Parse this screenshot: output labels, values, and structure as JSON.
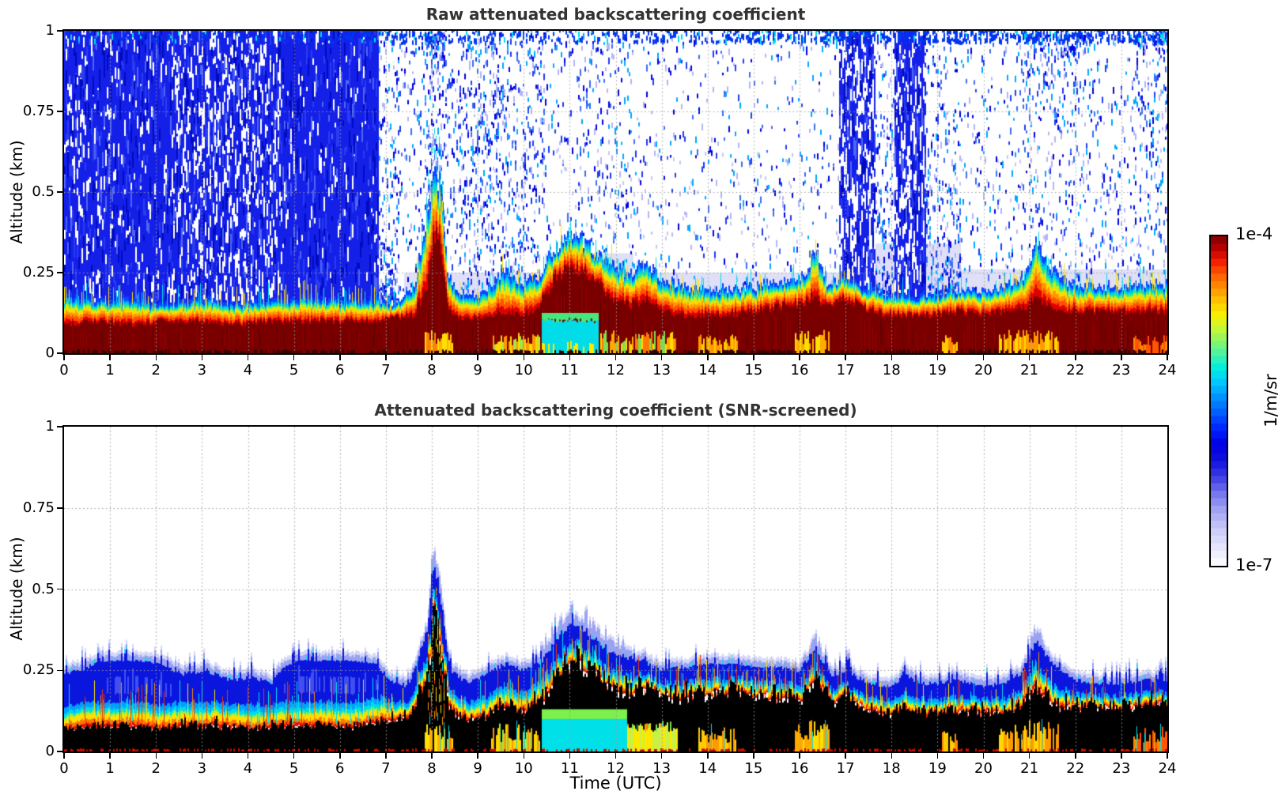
{
  "chart_data": {
    "type": "heatmap",
    "xlabel": "Time (UTC)",
    "ylabel": "Altitude (km)",
    "x_range": [
      0,
      24
    ],
    "y_range": [
      0,
      1
    ],
    "xticks": [
      0,
      1,
      2,
      3,
      4,
      5,
      6,
      7,
      8,
      9,
      10,
      11,
      12,
      13,
      14,
      15,
      16,
      17,
      18,
      19,
      20,
      21,
      22,
      23,
      24
    ],
    "yticks": [
      1,
      0.75,
      0.5,
      0.25,
      0
    ],
    "ytick_labels": [
      "1",
      "0.75",
      "0.5",
      "0.25",
      "0"
    ],
    "grid_alts": [
      0.25,
      0.5,
      0.75
    ],
    "colorbar": {
      "max_label": "1e-4",
      "min_label": "1e-7",
      "unit_label": "1/m/sr",
      "scale": "log",
      "vmin": 1e-07,
      "vmax": 0.0001
    },
    "colormap_stops": [
      [
        0,
        "#ffffff"
      ],
      [
        0.05,
        "#e8e8fc"
      ],
      [
        0.11,
        "#cacaf8"
      ],
      [
        0.17,
        "#a0a0f4"
      ],
      [
        0.22,
        "#7474ee"
      ],
      [
        0.27,
        "#3c3ce4"
      ],
      [
        0.32,
        "#1010dc"
      ],
      [
        0.37,
        "#0000e6"
      ],
      [
        0.42,
        "#0028ff"
      ],
      [
        0.47,
        "#0064ff"
      ],
      [
        0.52,
        "#009cff"
      ],
      [
        0.56,
        "#00ccff"
      ],
      [
        0.6,
        "#00eedd"
      ],
      [
        0.64,
        "#44f4a8"
      ],
      [
        0.68,
        "#88f468"
      ],
      [
        0.72,
        "#c8f830"
      ],
      [
        0.76,
        "#f8f000"
      ],
      [
        0.8,
        "#ffc800"
      ],
      [
        0.84,
        "#ff9600"
      ],
      [
        0.88,
        "#ff6000"
      ],
      [
        0.92,
        "#f52000"
      ],
      [
        0.96,
        "#c00000"
      ],
      [
        1,
        "#7c0000"
      ]
    ],
    "panels": [
      {
        "title": "Raw attenuated backscattering coefficient",
        "kind": "raw",
        "seed": 1234567,
        "profile_desc": "keypoints [time_utc, saturated_dark_red_top_km, aerosol_layer_top_km]",
        "profile": [
          [
            0,
            0.09,
            0.17
          ],
          [
            0.7,
            0.1,
            0.16
          ],
          [
            1.5,
            0.09,
            0.16
          ],
          [
            2.2,
            0.1,
            0.15
          ],
          [
            3,
            0.1,
            0.16
          ],
          [
            3.8,
            0.09,
            0.15
          ],
          [
            4.5,
            0.1,
            0.16
          ],
          [
            5.2,
            0.1,
            0.17
          ],
          [
            6,
            0.1,
            0.16
          ],
          [
            6.8,
            0.1,
            0.16
          ],
          [
            7.2,
            0.11,
            0.15
          ],
          [
            7.6,
            0.12,
            0.19
          ],
          [
            7.9,
            0.2,
            0.4
          ],
          [
            8.05,
            0.38,
            0.56
          ],
          [
            8.2,
            0.33,
            0.5
          ],
          [
            8.35,
            0.14,
            0.24
          ],
          [
            8.55,
            0.11,
            0.18
          ],
          [
            9,
            0.11,
            0.17
          ],
          [
            9.35,
            0.12,
            0.21
          ],
          [
            9.6,
            0.13,
            0.26
          ],
          [
            9.9,
            0.12,
            0.21
          ],
          [
            10.3,
            0.14,
            0.23
          ],
          [
            10.7,
            0.24,
            0.32
          ],
          [
            11.05,
            0.27,
            0.37
          ],
          [
            11.35,
            0.26,
            0.34
          ],
          [
            11.7,
            0.2,
            0.29
          ],
          [
            12.05,
            0.16,
            0.26
          ],
          [
            12.35,
            0.15,
            0.24
          ],
          [
            12.65,
            0.17,
            0.28
          ],
          [
            12.95,
            0.14,
            0.23
          ],
          [
            13.4,
            0.12,
            0.2
          ],
          [
            13.9,
            0.12,
            0.19
          ],
          [
            14.4,
            0.12,
            0.19
          ],
          [
            14.9,
            0.13,
            0.2
          ],
          [
            15.4,
            0.14,
            0.21
          ],
          [
            15.9,
            0.15,
            0.22
          ],
          [
            16.15,
            0.16,
            0.24
          ],
          [
            16.35,
            0.18,
            0.31
          ],
          [
            16.6,
            0.14,
            0.21
          ],
          [
            17,
            0.17,
            0.23
          ],
          [
            17.4,
            0.14,
            0.2
          ],
          [
            17.9,
            0.12,
            0.18
          ],
          [
            18.4,
            0.12,
            0.17
          ],
          [
            18.9,
            0.12,
            0.18
          ],
          [
            19.4,
            0.13,
            0.19
          ],
          [
            19.9,
            0.12,
            0.19
          ],
          [
            20.4,
            0.13,
            0.2
          ],
          [
            20.9,
            0.14,
            0.23
          ],
          [
            21.15,
            0.17,
            0.34
          ],
          [
            21.45,
            0.15,
            0.26
          ],
          [
            21.9,
            0.13,
            0.21
          ],
          [
            22.4,
            0.13,
            0.2
          ],
          [
            22.9,
            0.13,
            0.2
          ],
          [
            23.4,
            0.13,
            0.21
          ],
          [
            24.01,
            0.13,
            0.21
          ]
        ],
        "bands": [
          [
            0.2,
            "#e00000"
          ],
          [
            0.16,
            "#ff5200"
          ],
          [
            0.14,
            "#ff9800"
          ],
          [
            0.13,
            "#ffd800"
          ],
          [
            0.09,
            "#bef020"
          ],
          [
            0.08,
            "#46e87c"
          ],
          [
            0.09,
            "#00d8d8"
          ],
          [
            0.08,
            "#00a0ff"
          ],
          [
            0.13,
            "#0a46ff"
          ]
        ],
        "field_regions_desc": "[t0,t1,blue_noise_density,bias(1=low-alt,2=high-alt)]",
        "field_regions": [
          [
            0,
            1.05,
            0.8
          ],
          [
            1.05,
            2.35,
            0.9
          ],
          [
            2.35,
            3.1,
            0.62
          ],
          [
            3.1,
            4.05,
            0.55
          ],
          [
            4.05,
            4.75,
            0.6
          ],
          [
            4.75,
            6.85,
            0.94
          ],
          [
            6.85,
            7.3,
            0.3,
            1
          ],
          [
            7.3,
            7.85,
            0.1
          ],
          [
            7.85,
            8.3,
            0.25,
            2
          ],
          [
            8.3,
            8.6,
            0.12
          ],
          [
            8.6,
            9.5,
            0.26
          ],
          [
            9.5,
            10.45,
            0.18
          ],
          [
            10.45,
            11.2,
            0.06
          ],
          [
            11.2,
            12.4,
            0.1
          ],
          [
            12.4,
            16.85,
            0.05
          ],
          [
            16.85,
            17.65,
            0.45,
            1
          ],
          [
            17.65,
            18.05,
            0.28,
            1
          ],
          [
            18.05,
            18.75,
            0.5,
            1
          ],
          [
            18.75,
            19.5,
            0.24,
            1
          ],
          [
            19.5,
            20.85,
            0.08
          ],
          [
            20.85,
            22.35,
            0.16,
            2
          ],
          [
            22.35,
            23.25,
            0.09
          ],
          [
            23.25,
            24.01,
            0.2,
            2
          ]
        ],
        "top_strip": [
          [
            0,
            0.2
          ],
          [
            7.2,
            0.5
          ],
          [
            10.5,
            0.35
          ],
          [
            16.5,
            0.7
          ],
          [
            20.5,
            0.8
          ],
          [
            24.01,
            0.85
          ]
        ],
        "wash_regions": [
          [
            7.4,
            10.45,
            0.25
          ],
          [
            10.45,
            12.4,
            0.31
          ],
          [
            12.4,
            17,
            0.25
          ],
          [
            17,
            19.5,
            0.34
          ],
          [
            19.5,
            24.01,
            0.26
          ]
        ],
        "events": [
          [
            7.85,
            8.45,
            0.05,
            [
              "#ffe000",
              "#ffb000",
              "#ff8000"
            ]
          ],
          [
            9.3,
            10.35,
            0.045,
            [
              "#ffd800",
              "#a0e848",
              "#ff9900"
            ]
          ],
          [
            11.65,
            13.3,
            0.05,
            [
              "#ffd800",
              "#7ee050",
              "#ffaa00",
              "#ff7700"
            ]
          ],
          [
            13.8,
            14.65,
            0.04,
            [
              "#ff9900",
              "#ffcc00"
            ]
          ],
          [
            15.9,
            16.65,
            0.05,
            [
              "#ffe000",
              "#ffaa00"
            ]
          ],
          [
            19.1,
            19.45,
            0.04,
            [
              "#ffcc00",
              "#ff8800"
            ]
          ],
          [
            20.35,
            21.65,
            0.05,
            [
              "#ffd800",
              "#ff9900"
            ]
          ],
          [
            23.25,
            24.01,
            0.04,
            [
              "#ff8800",
              "#ff5500"
            ]
          ]
        ],
        "blob": [
          10.38,
          11.62
        ],
        "plume": [
          7.88,
          8.3
        ],
        "colors": {
          "core": "#7a0000",
          "core_var": [
            "#920000",
            "#5f0000"
          ],
          "field": "#1420e8",
          "field_var": [
            "#2b3cf2",
            "#000bc0",
            "#4f66f5"
          ],
          "speckle": [
            "#0000e0",
            "#1e3cf0",
            "#3c6cf5",
            "#00a8ff",
            "#b4b4f5"
          ],
          "wash": "#dfe0f8",
          "wash_speck": "#c6c8f4",
          "cyan": "#00dce8",
          "green": "#46e87c"
        }
      },
      {
        "title": "Attenuated backscattering coefficient (SNR-screened)",
        "kind": "screened",
        "seed": 987654,
        "profile_desc": "keypoints [time_utc, screened_black_core_top_km, layer_blue_top_km]",
        "profile": [
          [
            0,
            0.07,
            0.24
          ],
          [
            0.5,
            0.08,
            0.26
          ],
          [
            1,
            0.08,
            0.28
          ],
          [
            1.6,
            0.08,
            0.28
          ],
          [
            2.1,
            0.07,
            0.27
          ],
          [
            2.6,
            0.08,
            0.24
          ],
          [
            3.1,
            0.08,
            0.25
          ],
          [
            3.6,
            0.08,
            0.22
          ],
          [
            4.1,
            0.07,
            0.23
          ],
          [
            4.5,
            0.08,
            0.21
          ],
          [
            4.8,
            0.08,
            0.26
          ],
          [
            5.1,
            0.08,
            0.28
          ],
          [
            5.7,
            0.08,
            0.28
          ],
          [
            6.3,
            0.08,
            0.28
          ],
          [
            6.8,
            0.09,
            0.27
          ],
          [
            7.1,
            0.1,
            0.22
          ],
          [
            7.5,
            0.11,
            0.2
          ],
          [
            7.9,
            0.22,
            0.38
          ],
          [
            8.05,
            0.45,
            0.57
          ],
          [
            8.2,
            0.32,
            0.47
          ],
          [
            8.4,
            0.13,
            0.25
          ],
          [
            8.8,
            0.1,
            0.21
          ],
          [
            9.2,
            0.11,
            0.24
          ],
          [
            9.6,
            0.14,
            0.27
          ],
          [
            10,
            0.12,
            0.25
          ],
          [
            10.4,
            0.16,
            0.28
          ],
          [
            10.8,
            0.24,
            0.36
          ],
          [
            11.1,
            0.28,
            0.4
          ],
          [
            11.45,
            0.26,
            0.36
          ],
          [
            11.8,
            0.21,
            0.31
          ],
          [
            12.2,
            0.18,
            0.29
          ],
          [
            12.6,
            0.2,
            0.28
          ],
          [
            13,
            0.18,
            0.25
          ],
          [
            13.5,
            0.17,
            0.26
          ],
          [
            14,
            0.18,
            0.27
          ],
          [
            14.5,
            0.19,
            0.27
          ],
          [
            15,
            0.18,
            0.26
          ],
          [
            15.5,
            0.17,
            0.26
          ],
          [
            16,
            0.16,
            0.25
          ],
          [
            16.35,
            0.22,
            0.32
          ],
          [
            16.7,
            0.15,
            0.23
          ],
          [
            17,
            0.18,
            0.25
          ],
          [
            17.5,
            0.13,
            0.21
          ],
          [
            18,
            0.12,
            0.2
          ],
          [
            18.3,
            0.13,
            0.24
          ],
          [
            18.6,
            0.12,
            0.21
          ],
          [
            19,
            0.12,
            0.21
          ],
          [
            19.5,
            0.13,
            0.22
          ],
          [
            20,
            0.13,
            0.2
          ],
          [
            20.5,
            0.12,
            0.21
          ],
          [
            20.8,
            0.14,
            0.24
          ],
          [
            21.15,
            0.2,
            0.34
          ],
          [
            21.5,
            0.15,
            0.27
          ],
          [
            22,
            0.14,
            0.22
          ],
          [
            22.5,
            0.14,
            0.21
          ],
          [
            23,
            0.14,
            0.21
          ],
          [
            23.5,
            0.14,
            0.22
          ],
          [
            24.01,
            0.15,
            0.22
          ]
        ],
        "bands": [
          [
            0.15,
            "#e01400"
          ],
          [
            0.18,
            "#ff7800"
          ],
          [
            0.22,
            "#ffe000"
          ],
          [
            0.1,
            "#96f046"
          ],
          [
            0.18,
            "#00dce8"
          ],
          [
            0.17,
            "#00a0ff"
          ]
        ],
        "trans_cap": 0.07,
        "trans_ratio": 0.45,
        "flat_regions": [
          [
            0.9,
            2.35
          ],
          [
            4.8,
            6.85
          ],
          [
            13.6,
            15.6
          ]
        ],
        "halo_bumps": [
          [
            7.9,
            8.3,
            0.05
          ],
          [
            10.4,
            12.3,
            0.045
          ],
          [
            16.25,
            16.5,
            0.03
          ],
          [
            21,
            21.35,
            0.035
          ]
        ],
        "events": [
          [
            7.85,
            8.45,
            0.05,
            [
              "#ffe000",
              "#ffb000",
              "#ff8000"
            ]
          ],
          [
            9.3,
            10.35,
            0.045,
            [
              "#ffd800",
              "#a0e848",
              "#ff9900"
            ]
          ],
          [
            11.65,
            13.3,
            0.05,
            [
              "#ffd800",
              "#7ee050",
              "#ffaa00",
              "#ff7700"
            ]
          ],
          [
            13.8,
            14.65,
            0.04,
            [
              "#ff9900",
              "#ffcc00"
            ]
          ],
          [
            15.9,
            16.65,
            0.05,
            [
              "#ffe000",
              "#ffaa00"
            ]
          ],
          [
            19.1,
            19.45,
            0.04,
            [
              "#ffcc00",
              "#ff8800"
            ]
          ],
          [
            20.35,
            21.65,
            0.05,
            [
              "#ffd800",
              "#ff9900"
            ]
          ],
          [
            23.25,
            24.01,
            0.04,
            [
              "#ff8800",
              "#ff5500"
            ]
          ]
        ],
        "blob": [
          10.4,
          12.25
        ],
        "blob2": [
          12.25,
          13.35
        ],
        "plume": [
          7.9,
          8.28
        ],
        "colors": {
          "cap": "#0a16dd",
          "cap_light": "#4050f0",
          "halo1": "#9aa2f2",
          "halo2": "#d6d8f9",
          "cyan": "#00e0e8",
          "green": "#7cf04b",
          "grass": [
            "#ffe000",
            "#00e0e8",
            "#ff8c00",
            "#f03000"
          ],
          "red_edge": "#dc1400",
          "plume": [
            "#ff4400",
            "#ff9900",
            "#ffdd00",
            "#00d8e8"
          ]
        }
      }
    ]
  }
}
